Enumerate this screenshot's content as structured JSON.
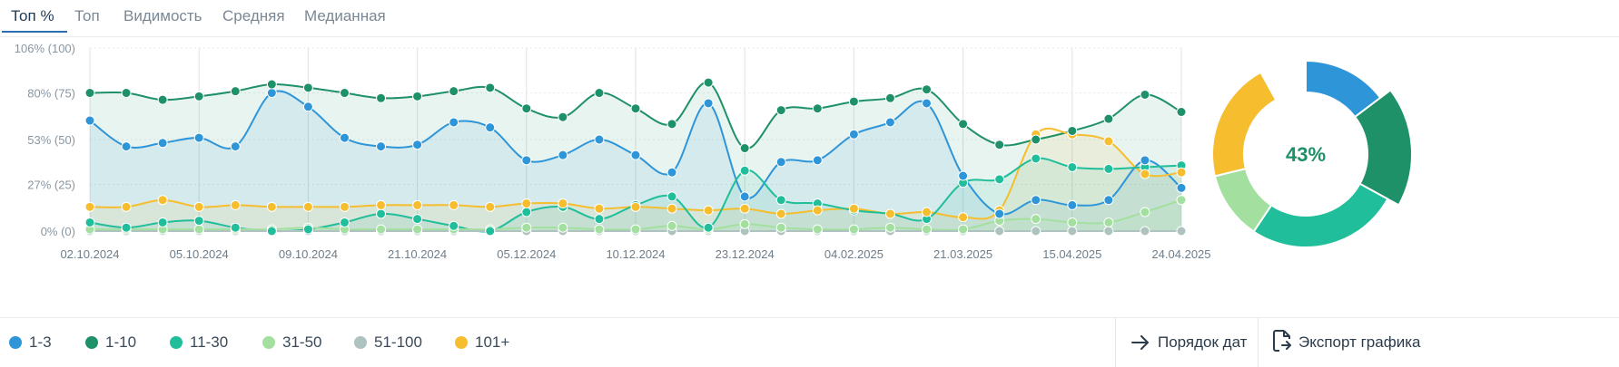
{
  "tabs": [
    {
      "label": "Топ %",
      "active": true
    },
    {
      "label": "Топ",
      "active": false
    },
    {
      "label": "Видимость",
      "active": false
    },
    {
      "label": "Средняя",
      "active": false
    },
    {
      "label": "Медианная",
      "active": false
    }
  ],
  "chart_data": {
    "type": "line",
    "area": true,
    "grid": true,
    "legend_position": "bottom",
    "x_labels": [
      "02.10.2024",
      "05.10.2024",
      "09.10.2024",
      "21.10.2024",
      "05.12.2024",
      "10.12.2024",
      "23.12.2024",
      "04.02.2025",
      "21.03.2025",
      "15.04.2025",
      "24.04.2025"
    ],
    "y_ticks": [
      {
        "value": 0,
        "label": "0% (0)"
      },
      {
        "value": 27,
        "label": "27% (25)"
      },
      {
        "value": 53,
        "label": "53% (50)"
      },
      {
        "value": 80,
        "label": "80% (75)"
      },
      {
        "value": 106,
        "label": "106% (100)"
      }
    ],
    "ylim": [
      0,
      106
    ],
    "x": [
      0,
      1,
      2,
      3,
      4,
      5,
      6,
      7,
      8,
      9,
      10,
      11,
      12,
      13,
      14,
      15,
      16,
      17,
      18,
      19,
      20,
      21,
      22,
      23,
      24,
      25,
      26,
      27,
      28,
      29,
      30
    ],
    "series": [
      {
        "name": "1-3",
        "color": "#2e95d8",
        "values": [
          64,
          49,
          51,
          54,
          49,
          80,
          72,
          54,
          49,
          50,
          63,
          60,
          41,
          44,
          53,
          44,
          34,
          74,
          20,
          40,
          41,
          56,
          63,
          74,
          32,
          10,
          18,
          15,
          18,
          41,
          25
        ]
      },
      {
        "name": "1-10",
        "color": "#1f9168",
        "values": [
          80,
          80,
          76,
          78,
          81,
          85,
          83,
          80,
          77,
          78,
          81,
          83,
          71,
          66,
          80,
          71,
          62,
          86,
          48,
          70,
          71,
          75,
          77,
          82,
          62,
          50,
          53,
          58,
          65,
          79,
          69
        ]
      },
      {
        "name": "11-30",
        "color": "#20be9a",
        "values": [
          5,
          2,
          5,
          6,
          2,
          0,
          1,
          5,
          10,
          7,
          3,
          0,
          11,
          14,
          7,
          15,
          20,
          2,
          35,
          18,
          16,
          12,
          10,
          7,
          28,
          30,
          42,
          37,
          36,
          37,
          38
        ]
      },
      {
        "name": "31-50",
        "color": "#a3e0a0",
        "values": [
          1,
          1,
          1,
          1,
          1,
          1,
          2,
          1,
          1,
          1,
          1,
          1,
          2,
          2,
          1,
          1,
          3,
          1,
          4,
          2,
          1,
          1,
          2,
          1,
          1,
          6,
          7,
          5,
          5,
          11,
          18
        ]
      },
      {
        "name": "51-100",
        "color": "#aec2c0",
        "values": [
          0,
          0,
          0,
          0,
          0,
          0,
          0,
          0,
          0,
          0,
          0,
          0,
          0,
          0,
          0,
          0,
          0,
          0,
          0,
          0,
          0,
          0,
          0,
          0,
          0,
          0,
          0,
          0,
          0,
          0,
          0
        ]
      },
      {
        "name": "101+",
        "color": "#f6bd2e",
        "values": [
          14,
          14,
          18,
          14,
          15,
          14,
          14,
          14,
          15,
          15,
          15,
          14,
          16,
          16,
          13,
          14,
          13,
          12,
          13,
          10,
          12,
          13,
          10,
          11,
          8,
          12,
          56,
          56,
          52,
          33,
          34
        ]
      }
    ]
  },
  "donut": {
    "center_label": "43%",
    "segments": [
      {
        "name": "1-3",
        "color": "#2e95d8",
        "percent": 14.7
      },
      {
        "name": "1-10",
        "color": "#1f9168",
        "percent": 18.3
      },
      {
        "name": "11-30",
        "color": "#20be9a",
        "percent": 26.4
      },
      {
        "name": "31-50",
        "color": "#a3e0a0",
        "percent": 11.8
      },
      {
        "name": "101+",
        "color": "#f6bd2e",
        "percent": 20.8
      }
    ]
  },
  "legend": [
    {
      "label": "1-3",
      "color": "#2e95d8"
    },
    {
      "label": "1-10",
      "color": "#1f9168"
    },
    {
      "label": "11-30",
      "color": "#20be9a"
    },
    {
      "label": "31-50",
      "color": "#a3e0a0"
    },
    {
      "label": "51-100",
      "color": "#aec2c0"
    },
    {
      "label": "101+",
      "color": "#f6bd2e"
    }
  ],
  "actions": {
    "date_order_label": "Порядок дат",
    "export_label": "Экспорт графика"
  }
}
